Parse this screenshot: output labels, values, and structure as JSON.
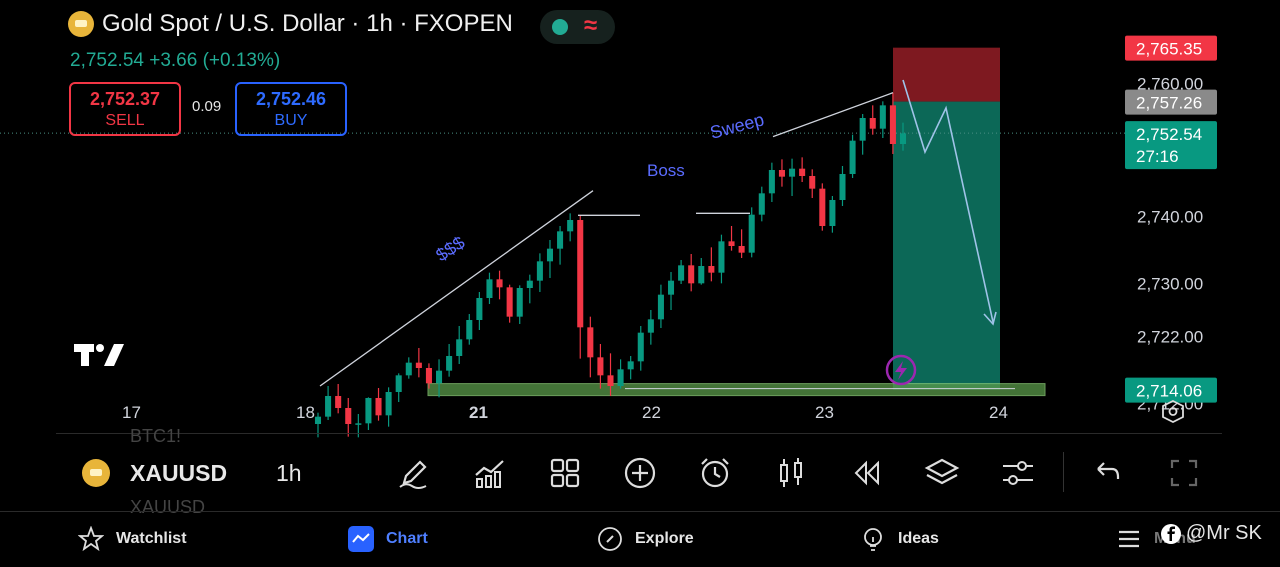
{
  "header": {
    "title": "Gold Spot / U.S. Dollar · 1h · FXOPEN",
    "price_change": "2,752.54  +3.66 (+0.13%)",
    "sell_price": "2,752.37",
    "sell_label": "SELL",
    "spread": "0.09",
    "buy_price": "2,752.46",
    "buy_label": "BUY"
  },
  "chart_data": {
    "type": "candlestick",
    "x_ticks": [
      "17",
      "18",
      "21",
      "22",
      "23",
      "24"
    ],
    "y_ticks": [
      "2,760.00",
      "2,740.00",
      "2,730.00",
      "2,722.00",
      "2,712.00"
    ],
    "y_tick_values": [
      2760,
      2740,
      2730,
      2722,
      2712
    ],
    "price_labels": [
      {
        "text": "2,765.35",
        "value": 2765.35,
        "color": "#f23645"
      },
      {
        "text": "2,757.26",
        "value": 2757.26,
        "color": "#8a8a8a"
      },
      {
        "text": "2,752.54",
        "sub": "27:16",
        "value": 2752.54,
        "color": "#089981"
      },
      {
        "text": "2,714.06",
        "value": 2714.06,
        "color": "#089981"
      }
    ],
    "ylim": [
      2706.5,
      2772.5
    ],
    "candles": [
      [
        2708.9,
        2710.6,
        2706.9,
        2710.0
      ],
      [
        2710.0,
        2714.6,
        2709.5,
        2713.1
      ],
      [
        2713.1,
        2714.9,
        2710.5,
        2711.3
      ],
      [
        2711.3,
        2712.8,
        2707.0,
        2708.9
      ],
      [
        2708.9,
        2710.4,
        2706.9,
        2709.0
      ],
      [
        2709.0,
        2712.9,
        2708.0,
        2712.8
      ],
      [
        2712.8,
        2714.3,
        2709.4,
        2710.2
      ],
      [
        2710.2,
        2714.4,
        2708.5,
        2713.7
      ],
      [
        2713.7,
        2716.5,
        2712.2,
        2716.2
      ],
      [
        2716.2,
        2718.9,
        2715.7,
        2718.1
      ],
      [
        2718.1,
        2720.3,
        2715.9,
        2717.3
      ],
      [
        2717.3,
        2718.0,
        2714.2,
        2715.0
      ],
      [
        2715.0,
        2718.6,
        2712.9,
        2716.9
      ],
      [
        2716.9,
        2720.9,
        2716.0,
        2719.1
      ],
      [
        2719.1,
        2723.6,
        2717.9,
        2721.6
      ],
      [
        2721.6,
        2725.4,
        2720.8,
        2724.5
      ],
      [
        2724.5,
        2728.7,
        2723.0,
        2727.8
      ],
      [
        2727.8,
        2731.6,
        2726.9,
        2730.6
      ],
      [
        2730.6,
        2731.9,
        2727.6,
        2729.4
      ],
      [
        2729.4,
        2729.8,
        2724.1,
        2725.0
      ],
      [
        2725.0,
        2729.7,
        2723.9,
        2729.3
      ],
      [
        2729.3,
        2731.3,
        2727.0,
        2730.4
      ],
      [
        2730.4,
        2734.5,
        2728.7,
        2733.3
      ],
      [
        2733.3,
        2736.5,
        2730.8,
        2735.2
      ],
      [
        2735.2,
        2738.6,
        2732.8,
        2737.8
      ],
      [
        2737.8,
        2740.5,
        2736.3,
        2739.5
      ],
      [
        2739.5,
        2740.1,
        2718.7,
        2723.4
      ],
      [
        2723.4,
        2725.0,
        2715.9,
        2718.9
      ],
      [
        2718.9,
        2720.9,
        2714.2,
        2716.2
      ],
      [
        2716.2,
        2719.5,
        2713.1,
        2714.6
      ],
      [
        2714.6,
        2718.6,
        2714.2,
        2717.1
      ],
      [
        2717.1,
        2719.1,
        2715.6,
        2718.3
      ],
      [
        2718.3,
        2723.6,
        2716.9,
        2722.6
      ],
      [
        2722.6,
        2726.0,
        2720.8,
        2724.6
      ],
      [
        2724.6,
        2729.8,
        2723.3,
        2728.3
      ],
      [
        2728.3,
        2731.7,
        2726.0,
        2730.4
      ],
      [
        2730.4,
        2733.5,
        2729.9,
        2732.7
      ],
      [
        2732.7,
        2734.4,
        2728.8,
        2730.0
      ],
      [
        2730.0,
        2733.8,
        2729.8,
        2732.6
      ],
      [
        2732.6,
        2735.4,
        2730.3,
        2731.6
      ],
      [
        2731.6,
        2737.3,
        2730.0,
        2736.3
      ],
      [
        2736.3,
        2738.6,
        2734.9,
        2735.6
      ],
      [
        2735.6,
        2738.1,
        2733.8,
        2734.6
      ],
      [
        2734.6,
        2741.4,
        2733.9,
        2740.3
      ],
      [
        2740.3,
        2744.5,
        2739.3,
        2743.5
      ],
      [
        2743.5,
        2748.1,
        2742.2,
        2747.0
      ],
      [
        2747.0,
        2748.6,
        2744.5,
        2746.0
      ],
      [
        2746.0,
        2748.7,
        2743.1,
        2747.2
      ],
      [
        2747.2,
        2748.9,
        2745.2,
        2746.1
      ],
      [
        2746.1,
        2747.1,
        2742.8,
        2744.2
      ],
      [
        2744.2,
        2745.0,
        2737.9,
        2738.6
      ],
      [
        2738.6,
        2743.1,
        2737.6,
        2742.5
      ],
      [
        2742.5,
        2747.6,
        2741.6,
        2746.4
      ],
      [
        2746.4,
        2752.3,
        2745.8,
        2751.4
      ],
      [
        2751.4,
        2755.4,
        2749.3,
        2754.8
      ],
      [
        2754.8,
        2756.7,
        2752.3,
        2753.2
      ],
      [
        2753.2,
        2757.3,
        2751.8,
        2756.7
      ],
      [
        2756.7,
        2758.6,
        2749.4,
        2750.9
      ],
      [
        2750.9,
        2754.1,
        2749.9,
        2752.5
      ]
    ],
    "annotations": [
      {
        "text": "$$$"
      },
      {
        "text": "Boss"
      },
      {
        "text": "Sweep"
      }
    ],
    "trade_zone": {
      "stop": 2765.35,
      "entry": 2757.26,
      "target": 2714.06
    },
    "colors": {
      "up": "#089981",
      "down": "#f23645",
      "grid_text": "#d1d4dc",
      "annot": "#5b6cff"
    }
  },
  "toolbar": {
    "symbol": "XAUUSD",
    "timeframe": "1h",
    "ghost_top": "BTC1!",
    "ghost_bottom": "XAUUSD"
  },
  "nav": {
    "watchlist": "Watchlist",
    "chart": "Chart",
    "explore": "Explore",
    "ideas": "Ideas",
    "menu": "Menu",
    "watermark": "@Mr SK"
  }
}
